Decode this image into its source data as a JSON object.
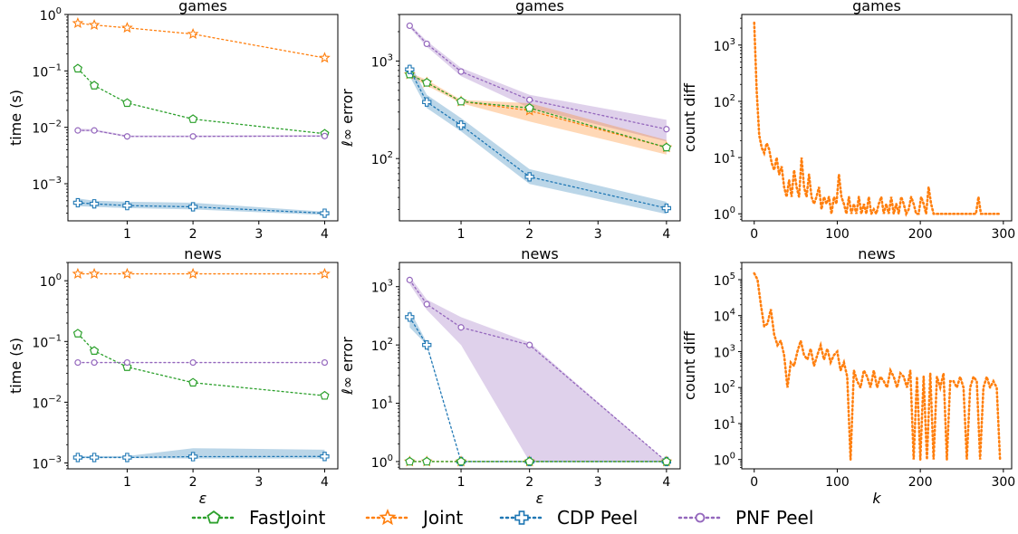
{
  "legend": [
    {
      "label": "FastJoint",
      "color": "#2ca02c",
      "marker": "pentagon"
    },
    {
      "label": "Joint",
      "color": "#ff7f0e",
      "marker": "star"
    },
    {
      "label": "CDP Peel",
      "color": "#1f77b4",
      "marker": "plus"
    },
    {
      "label": "PNF Peel",
      "color": "#9467bd",
      "marker": "circle"
    }
  ],
  "chart_data": [
    {
      "type": "line",
      "title": "games",
      "xlabel": "",
      "ylabel": "time (s)",
      "yscale": "log",
      "xlim": [
        0.1,
        4.2
      ],
      "ylim": [
        0.00022,
        1.0
      ],
      "xticks": [
        1,
        2,
        3,
        4
      ],
      "yticks": [
        0.001,
        0.01,
        0.1,
        1
      ],
      "ytick_labels": [
        [
          "10",
          "−3"
        ],
        [
          "10",
          "−2"
        ],
        [
          "10",
          "−1"
        ],
        [
          "10",
          "0"
        ]
      ],
      "series": [
        {
          "name": "Joint",
          "x": [
            0.25,
            0.5,
            1,
            2,
            4
          ],
          "y": [
            0.7,
            0.65,
            0.58,
            0.45,
            0.17
          ]
        },
        {
          "name": "FastJoint",
          "x": [
            0.25,
            0.5,
            1,
            2,
            4
          ],
          "y": [
            0.11,
            0.055,
            0.027,
            0.014,
            0.0077
          ]
        },
        {
          "name": "PNF Peel",
          "x": [
            0.25,
            0.5,
            1,
            2,
            4
          ],
          "y": [
            0.0088,
            0.0088,
            0.0069,
            0.0069,
            0.007
          ],
          "band_lo": [
            0.0085,
            0.0085,
            0.0067,
            0.0067,
            0.0068
          ],
          "band_hi": [
            0.0095,
            0.0092,
            0.0072,
            0.0072,
            0.0073
          ]
        },
        {
          "name": "CDP Peel",
          "x": [
            0.25,
            0.5,
            1,
            2,
            4
          ],
          "y": [
            0.00046,
            0.00044,
            0.00041,
            0.00039,
            0.0003
          ],
          "band_lo": [
            0.0004,
            0.00039,
            0.00037,
            0.00035,
            0.00028
          ],
          "band_hi": [
            0.00055,
            0.0005,
            0.00048,
            0.00046,
            0.00032
          ]
        }
      ]
    },
    {
      "type": "line",
      "title": "games",
      "xlabel": "",
      "ylabel": "ℓ∞ error",
      "yscale": "log",
      "xlim": [
        0.1,
        4.2
      ],
      "ylim": [
        23,
        3000
      ],
      "xticks": [
        1,
        2,
        3,
        4
      ],
      "yticks": [
        100,
        1000
      ],
      "ytick_labels": [
        [
          "10",
          "2"
        ],
        [
          "10",
          "3"
        ]
      ],
      "series": [
        {
          "name": "PNF Peel",
          "x": [
            0.25,
            0.5,
            1,
            2,
            4
          ],
          "y": [
            2300,
            1500,
            780,
            400,
            200
          ],
          "band_lo": [
            2200,
            1400,
            700,
            330,
            150
          ],
          "band_hi": [
            2400,
            1600,
            850,
            450,
            250
          ]
        },
        {
          "name": "Joint",
          "x": [
            0.25,
            0.5,
            1,
            2,
            4
          ],
          "y": [
            730,
            600,
            385,
            310,
            130
          ],
          "band_lo": [
            700,
            560,
            370,
            240,
            110
          ],
          "band_hi": [
            760,
            640,
            400,
            370,
            155
          ]
        },
        {
          "name": "FastJoint",
          "x": [
            0.25,
            0.5,
            1,
            2,
            4
          ],
          "y": [
            730,
            600,
            385,
            330,
            130
          ]
        },
        {
          "name": "CDP Peel",
          "x": [
            0.25,
            0.5,
            1,
            2,
            4
          ],
          "y": [
            820,
            380,
            220,
            65,
            31
          ],
          "band_lo": [
            700,
            330,
            190,
            55,
            27
          ],
          "band_hi": [
            950,
            450,
            260,
            78,
            36
          ]
        }
      ]
    },
    {
      "type": "line",
      "title": "games",
      "xlabel": "",
      "ylabel": "count diff",
      "yscale": "log",
      "xlim": [
        -15,
        310
      ],
      "ylim": [
        0.75,
        3500
      ],
      "xticks": [
        0,
        100,
        200,
        300
      ],
      "yticks": [
        1,
        10,
        100,
        1000
      ],
      "ytick_labels": [
        [
          "10",
          "0"
        ],
        [
          "10",
          "1"
        ],
        [
          "10",
          "2"
        ],
        [
          "10",
          "3"
        ]
      ],
      "series": [
        {
          "name": "Joint",
          "x": [
            0,
            3,
            6,
            9,
            12,
            15,
            18,
            21,
            24,
            27,
            30,
            33,
            36,
            39,
            42,
            45,
            48,
            51,
            54,
            57,
            60,
            63,
            66,
            69,
            72,
            75,
            78,
            81,
            84,
            87,
            90,
            93,
            96,
            99,
            102,
            105,
            108,
            111,
            114,
            117,
            120,
            123,
            126,
            129,
            132,
            135,
            138,
            141,
            144,
            147,
            150,
            153,
            156,
            159,
            162,
            165,
            168,
            171,
            174,
            177,
            180,
            183,
            186,
            189,
            192,
            195,
            198,
            201,
            204,
            207,
            210,
            213,
            216,
            219,
            222,
            225,
            228,
            231,
            234,
            237,
            240,
            243,
            246,
            249,
            252,
            255,
            258,
            261,
            264,
            267,
            270,
            273,
            276,
            279,
            282,
            285,
            288,
            291,
            294,
            297
          ],
          "y": [
            2500,
            150,
            25,
            15,
            12,
            18,
            14,
            8,
            6,
            10,
            5,
            7,
            3,
            2,
            4,
            2,
            6,
            3,
            2,
            10,
            3,
            2,
            5,
            2,
            1.5,
            2,
            3,
            1.2,
            2,
            1.5,
            2,
            1,
            2,
            1.5,
            5,
            2,
            1.5,
            1,
            2,
            1,
            1.5,
            1,
            2,
            1,
            1.5,
            1,
            2,
            1,
            1.2,
            1,
            1.5,
            2,
            1,
            1.5,
            1,
            2,
            1,
            1.5,
            1,
            2,
            1.5,
            1,
            1.2,
            2,
            1.5,
            1,
            1,
            2,
            1.5,
            1,
            3,
            1.5,
            1,
            1,
            1,
            1,
            1,
            1,
            1,
            1,
            1,
            1,
            1,
            1,
            1,
            1,
            1,
            1,
            1,
            1,
            2,
            1,
            1,
            1,
            1,
            1,
            1,
            1,
            1,
            1
          ]
        }
      ]
    },
    {
      "type": "line",
      "title": "news",
      "xlabel": "ε",
      "ylabel": "time (s)",
      "yscale": "log",
      "xlim": [
        0.1,
        4.2
      ],
      "ylim": [
        0.0008,
        2.0
      ],
      "xticks": [
        1,
        2,
        3,
        4
      ],
      "yticks": [
        0.001,
        0.01,
        0.1,
        1
      ],
      "ytick_labels": [
        [
          "10",
          "−3"
        ],
        [
          "10",
          "−2"
        ],
        [
          "10",
          "−1"
        ],
        [
          "10",
          "0"
        ]
      ],
      "series": [
        {
          "name": "Joint",
          "x": [
            0.25,
            0.5,
            1,
            2,
            4
          ],
          "y": [
            1.3,
            1.3,
            1.3,
            1.3,
            1.3
          ]
        },
        {
          "name": "FastJoint",
          "x": [
            0.25,
            0.5,
            1,
            2,
            4
          ],
          "y": [
            0.135,
            0.07,
            0.038,
            0.021,
            0.0128
          ]
        },
        {
          "name": "PNF Peel",
          "x": [
            0.25,
            0.5,
            1,
            2,
            4
          ],
          "y": [
            0.045,
            0.045,
            0.045,
            0.045,
            0.045
          ]
        },
        {
          "name": "CDP Peel",
          "x": [
            0.25,
            0.5,
            1,
            2,
            4
          ],
          "y": [
            0.00123,
            0.00123,
            0.00123,
            0.00127,
            0.00128
          ],
          "band_lo": [
            0.0012,
            0.0012,
            0.0012,
            0.00118,
            0.00118
          ],
          "band_hi": [
            0.0013,
            0.0013,
            0.0013,
            0.00175,
            0.00165
          ]
        }
      ]
    },
    {
      "type": "line",
      "title": "news",
      "xlabel": "ε",
      "ylabel": "ℓ∞ error",
      "yscale": "log",
      "xlim": [
        0.1,
        4.2
      ],
      "ylim": [
        0.75,
        2600
      ],
      "xticks": [
        1,
        2,
        3,
        4
      ],
      "yticks": [
        1,
        10,
        100,
        1000
      ],
      "ytick_labels": [
        [
          "10",
          "0"
        ],
        [
          "10",
          "1"
        ],
        [
          "10",
          "2"
        ],
        [
          "10",
          "3"
        ]
      ],
      "series": [
        {
          "name": "PNF Peel",
          "x": [
            0.25,
            0.5,
            1,
            2,
            4
          ],
          "y": [
            1300,
            500,
            200,
            100,
            1
          ],
          "band_lo": [
            1100,
            400,
            100,
            1,
            1
          ],
          "band_hi": [
            1500,
            600,
            300,
            110,
            1
          ]
        },
        {
          "name": "CDP Peel",
          "x": [
            0.25,
            0.5,
            1,
            2,
            4
          ],
          "y": [
            300,
            100,
            1,
            1,
            1
          ],
          "band_lo": [
            200,
            100,
            1,
            1,
            1
          ],
          "band_hi": [
            400,
            110,
            1,
            1,
            1
          ]
        },
        {
          "name": "Joint",
          "x": [
            0.25,
            0.5,
            1,
            2,
            4
          ],
          "y": [
            1,
            1,
            1,
            1,
            1
          ]
        },
        {
          "name": "FastJoint",
          "x": [
            0.25,
            0.5,
            1,
            2,
            4
          ],
          "y": [
            1,
            1,
            1,
            1,
            1
          ]
        }
      ]
    },
    {
      "type": "line",
      "title": "news",
      "xlabel": "k",
      "ylabel": "count diff",
      "yscale": "log",
      "xlim": [
        -15,
        310
      ],
      "ylim": [
        0.55,
        300000
      ],
      "xticks": [
        0,
        100,
        200,
        300
      ],
      "yticks": [
        1,
        10,
        100,
        1000,
        10000,
        100000
      ],
      "ytick_labels": [
        [
          "10",
          "0"
        ],
        [
          "10",
          "1"
        ],
        [
          "10",
          "2"
        ],
        [
          "10",
          "3"
        ],
        [
          "10",
          "4"
        ],
        [
          "10",
          "5"
        ]
      ],
      "series": [
        {
          "name": "Joint",
          "x": [
            0,
            4,
            8,
            12,
            16,
            20,
            24,
            28,
            32,
            36,
            40,
            44,
            48,
            52,
            56,
            60,
            64,
            68,
            72,
            76,
            80,
            84,
            88,
            92,
            96,
            100,
            104,
            108,
            112,
            116,
            120,
            124,
            128,
            132,
            136,
            140,
            144,
            148,
            152,
            156,
            160,
            164,
            168,
            172,
            176,
            180,
            184,
            188,
            192,
            196,
            200,
            204,
            208,
            212,
            216,
            220,
            224,
            228,
            232,
            236,
            240,
            244,
            248,
            252,
            256,
            260,
            264,
            268,
            272,
            276,
            280,
            284,
            288,
            292,
            296
          ],
          "y": [
            150000,
            100000,
            20000,
            5000,
            6000,
            15000,
            3000,
            1500,
            2000,
            800,
            100,
            500,
            400,
            1000,
            2000,
            800,
            600,
            1200,
            400,
            800,
            1500,
            600,
            1200,
            500,
            800,
            1000,
            300,
            500,
            200,
            1,
            300,
            150,
            100,
            300,
            200,
            100,
            300,
            100,
            200,
            150,
            100,
            300,
            200,
            100,
            250,
            200,
            100,
            300,
            1,
            200,
            1,
            200,
            1,
            250,
            1,
            200,
            100,
            250,
            1,
            150,
            150,
            100,
            200,
            100,
            1,
            100,
            200,
            150,
            1,
            100,
            200,
            100,
            150,
            100,
            1
          ]
        }
      ]
    }
  ]
}
